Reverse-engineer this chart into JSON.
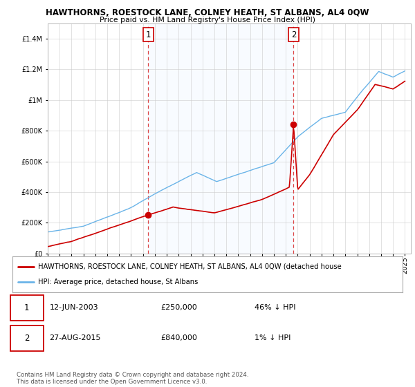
{
  "title": "HAWTHORNS, ROESTOCK LANE, COLNEY HEATH, ST ALBANS, AL4 0QW",
  "subtitle": "Price paid vs. HM Land Registry's House Price Index (HPI)",
  "ylim": [
    0,
    1500000
  ],
  "xlim_start": 1995,
  "xlim_end": 2025.5,
  "sale1_date": 2003.44,
  "sale1_price": 250000,
  "sale2_date": 2015.65,
  "sale2_price": 840000,
  "hpi_color": "#6ab4e8",
  "price_color": "#cc0000",
  "shade_color": "#ddeeff",
  "grid_color": "#cccccc",
  "legend_label_price": "HAWTHORNS, ROESTOCK LANE, COLNEY HEATH, ST ALBANS, AL4 0QW (detached house",
  "legend_label_hpi": "HPI: Average price, detached house, St Albans",
  "table_row1": [
    "1",
    "12-JUN-2003",
    "£250,000",
    "46% ↓ HPI"
  ],
  "table_row2": [
    "2",
    "27-AUG-2015",
    "£840,000",
    "1% ↓ HPI"
  ],
  "footnote": "Contains HM Land Registry data © Crown copyright and database right 2024.\nThis data is licensed under the Open Government Licence v3.0.",
  "yticks": [
    0,
    200000,
    400000,
    600000,
    800000,
    1000000,
    1200000,
    1400000
  ]
}
